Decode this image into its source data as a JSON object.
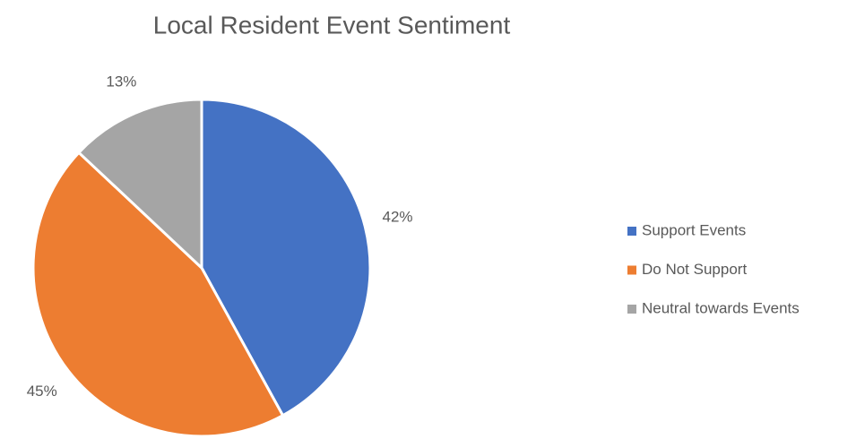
{
  "chart_data": {
    "type": "pie",
    "title": "Local Resident Event Sentiment",
    "categories": [
      "Support Events",
      "Do Not Support",
      "Neutral towards Events"
    ],
    "values": [
      42,
      45,
      13
    ],
    "value_labels": [
      "42%",
      "45%",
      "13%"
    ],
    "colors": [
      "#4472c4",
      "#ed7d31",
      "#a5a5a5"
    ],
    "legend": "right"
  }
}
